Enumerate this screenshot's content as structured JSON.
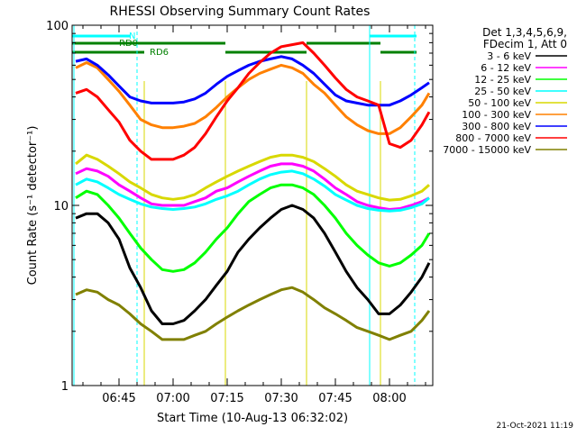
{
  "chart_data": {
    "type": "line",
    "title": "RHESSI Observing Summary Count Rates",
    "xlabel": "Start Time (10-Aug-13 06:32:02)",
    "ylabel": "Count Rate (s⁻¹ detector⁻¹)",
    "y_scale": "log",
    "ylim": [
      1,
      100
    ],
    "xlim": [
      "06:32",
      "08:12"
    ],
    "x_ticks": [
      "06:45",
      "07:00",
      "07:15",
      "07:30",
      "07:45",
      "08:00"
    ],
    "y_ticks": [
      "1",
      "10",
      "100"
    ],
    "grid": false,
    "legend_position": "right",
    "legend_header": [
      "Det 1,3,4,5,6,9,",
      "FDecim 1, Att 0"
    ],
    "x": [
      "06:33",
      "06:36",
      "06:39",
      "06:42",
      "06:45",
      "06:48",
      "06:51",
      "06:54",
      "06:57",
      "07:00",
      "07:03",
      "07:06",
      "07:09",
      "07:12",
      "07:15",
      "07:18",
      "07:21",
      "07:24",
      "07:27",
      "07:30",
      "07:33",
      "07:36",
      "07:39",
      "07:42",
      "07:45",
      "07:48",
      "07:51",
      "07:54",
      "07:57",
      "08:00",
      "08:03",
      "08:06",
      "08:09",
      "08:11"
    ],
    "series": [
      {
        "name": "3 - 6 keV",
        "color": "#000000",
        "values": [
          8.5,
          9,
          9,
          8,
          6.5,
          4.5,
          3.5,
          2.6,
          2.2,
          2.2,
          2.3,
          2.6,
          3,
          3.6,
          4.3,
          5.5,
          6.5,
          7.5,
          8.5,
          9.5,
          10,
          9.5,
          8.5,
          7,
          5.5,
          4.3,
          3.5,
          3,
          2.5,
          2.5,
          2.8,
          3.3,
          4,
          4.8
        ]
      },
      {
        "name": "6 - 12 keV",
        "color": "#ff00ff",
        "values": [
          15,
          16,
          15.5,
          14.5,
          13,
          12,
          11,
          10.2,
          10,
          10,
          10,
          10.5,
          11,
          12,
          12.5,
          13.5,
          14.5,
          15.5,
          16.5,
          17,
          17,
          16.5,
          15.5,
          14,
          12.5,
          11.5,
          10.5,
          10,
          9.7,
          9.5,
          9.6,
          10,
          10.5,
          11
        ]
      },
      {
        "name": "12 - 25 keV",
        "color": "#00ff00",
        "values": [
          11,
          12,
          11.5,
          10,
          8.5,
          7,
          5.8,
          5,
          4.4,
          4.3,
          4.4,
          4.8,
          5.5,
          6.5,
          7.5,
          9,
          10.5,
          11.5,
          12.5,
          13,
          13,
          12.5,
          11.5,
          10,
          8.5,
          7,
          6,
          5.3,
          4.8,
          4.6,
          4.8,
          5.3,
          6,
          7
        ]
      },
      {
        "name": "25 - 50 keV",
        "color": "#00ffff",
        "values": [
          13,
          14,
          13.5,
          12.5,
          11.5,
          10.8,
          10.2,
          9.8,
          9.6,
          9.5,
          9.6,
          9.8,
          10.2,
          10.8,
          11.3,
          12,
          13,
          14,
          14.8,
          15.3,
          15.5,
          15,
          14,
          12.8,
          11.5,
          10.7,
          10,
          9.6,
          9.4,
          9.3,
          9.4,
          9.7,
          10.2,
          11
        ]
      },
      {
        "name": "50 - 100 keV",
        "color": "#d8d800",
        "values": [
          17,
          19,
          18,
          16.5,
          15,
          13.5,
          12.5,
          11.5,
          11,
          10.8,
          11,
          11.5,
          12.5,
          13.5,
          14.5,
          15.5,
          16.5,
          17.5,
          18.5,
          19,
          19,
          18.5,
          17.5,
          16,
          14.5,
          13,
          12,
          11.5,
          11,
          10.7,
          10.8,
          11.3,
          12,
          13
        ]
      },
      {
        "name": "100 - 300 keV",
        "color": "#ff8000",
        "values": [
          58,
          62,
          58,
          50,
          43,
          36,
          30,
          28,
          27,
          27,
          27.5,
          28.5,
          31,
          35,
          40,
          45,
          50,
          54,
          57,
          60,
          58,
          54,
          47,
          42,
          36,
          31,
          28,
          26,
          25,
          25,
          27,
          31,
          36,
          42
        ]
      },
      {
        "name": "300 - 800 keV",
        "color": "#0000ff",
        "values": [
          63,
          65,
          60,
          53,
          46,
          40,
          38,
          37,
          37,
          37,
          37.5,
          39,
          42,
          47,
          52,
          56,
          60,
          63,
          65,
          67,
          65,
          60,
          54,
          47,
          41,
          38,
          37,
          36,
          36,
          36,
          38,
          41,
          45,
          48
        ]
      },
      {
        "name": "800 - 7000 keV",
        "color": "#ff0000",
        "values": [
          42,
          44,
          40,
          34,
          29,
          23,
          20,
          18,
          18,
          18,
          19,
          21,
          25,
          31,
          38,
          45,
          54,
          62,
          70,
          76,
          78,
          80,
          70,
          60,
          51,
          44,
          40,
          38,
          36,
          22,
          21,
          23,
          28,
          33
        ]
      },
      {
        "name": "7000 - 15000 keV",
        "color": "#808000",
        "values": [
          3.2,
          3.4,
          3.3,
          3,
          2.8,
          2.5,
          2.2,
          2,
          1.8,
          1.8,
          1.8,
          1.9,
          2,
          2.2,
          2.4,
          2.6,
          2.8,
          3,
          3.2,
          3.4,
          3.5,
          3.3,
          3,
          2.7,
          2.5,
          2.3,
          2.1,
          2,
          1.9,
          1.8,
          1.9,
          2,
          2.3,
          2.6
        ]
      }
    ],
    "flag_labels": [
      "N",
      "RD0",
      "RD6"
    ],
    "timestamp": "21-Oct-2021 11:19"
  }
}
